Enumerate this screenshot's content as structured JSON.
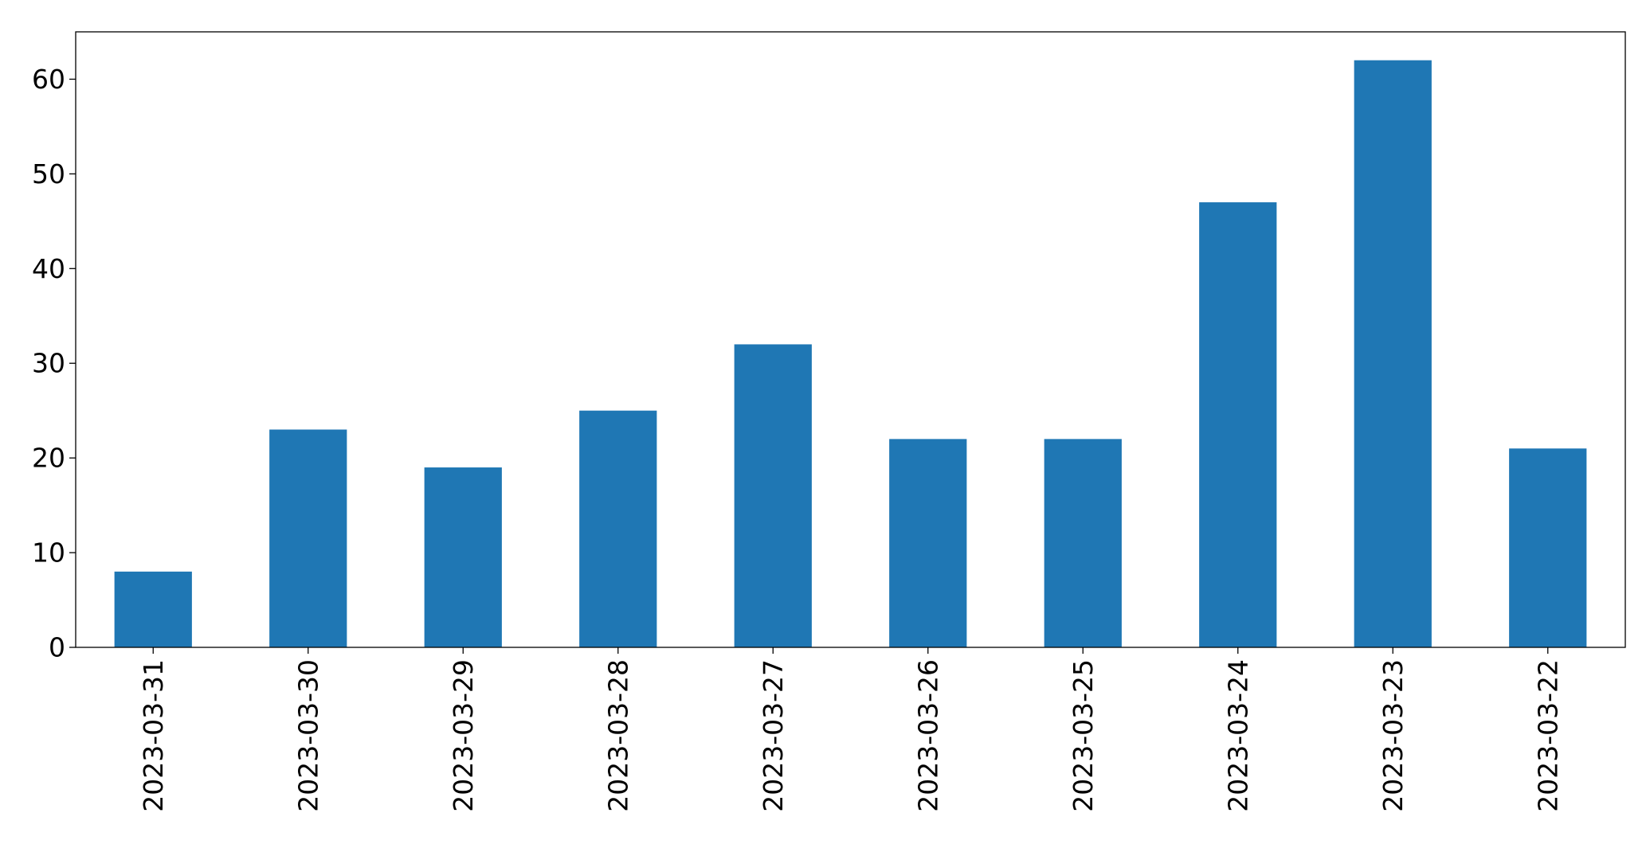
{
  "chart_data": {
    "type": "bar",
    "title": "",
    "xlabel": "",
    "ylabel": "",
    "categories": [
      "2023-03-31",
      "2023-03-30",
      "2023-03-29",
      "2023-03-28",
      "2023-03-27",
      "2023-03-26",
      "2023-03-25",
      "2023-03-24",
      "2023-03-23",
      "2023-03-22"
    ],
    "values": [
      8,
      23,
      19,
      25,
      32,
      22,
      22,
      47,
      62,
      21
    ],
    "ylim": [
      0,
      65
    ],
    "yticks": [
      0,
      10,
      20,
      30,
      40,
      50,
      60
    ],
    "ytick_labels": [
      "0",
      "10",
      "20",
      "30",
      "40",
      "50",
      "60"
    ],
    "grid": false,
    "legend": false,
    "bar_color": "#1f77b4",
    "x_tick_rotation": "vertical"
  }
}
